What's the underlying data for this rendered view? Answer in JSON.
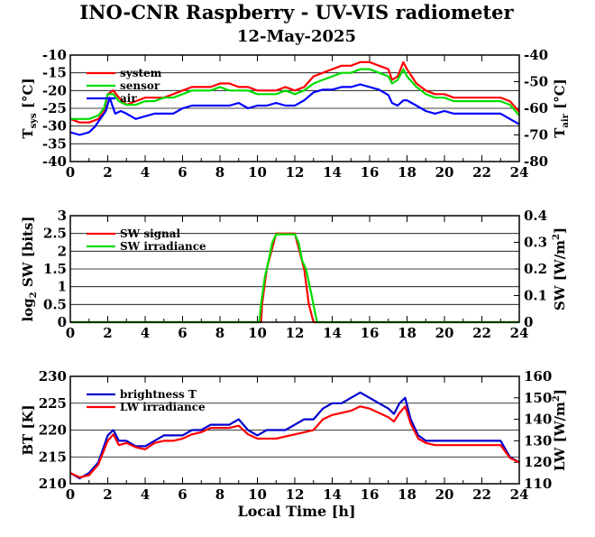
{
  "header": {
    "title": "INO-CNR Raspberry - UV-VIS radiometer",
    "date": "12-May-2025"
  },
  "shared_x": {
    "label": "Local Time [h]",
    "range": [
      0,
      24
    ],
    "ticks": [
      "0",
      "2",
      "4",
      "6",
      "8",
      "10",
      "12",
      "14",
      "16",
      "18",
      "20",
      "22",
      "24"
    ]
  },
  "chart_data": [
    {
      "type": "line",
      "ylabel_left": "T_sys [°C]",
      "ylabel_right": "T_air [°C]",
      "ylim_left": [
        -40,
        -10
      ],
      "ylim_right": [
        -80,
        -40
      ],
      "yticks_left": [
        "-40",
        "-35",
        "-30",
        "-25",
        "-20",
        "-15",
        "-10"
      ],
      "yticks_right": [
        "-80",
        "-70",
        "-60",
        "-50",
        "-40"
      ],
      "grid": true,
      "legend_position": "top-left",
      "series": [
        {
          "name": "system",
          "color": "#ff0000",
          "axis": "left",
          "x": [
            0,
            0.5,
            1,
            1.5,
            1.8,
            2,
            2.3,
            2.6,
            3,
            3.5,
            4,
            4.5,
            5,
            5.5,
            6,
            6.5,
            7,
            7.5,
            8,
            8.5,
            9,
            9.5,
            10,
            10.5,
            11,
            11.5,
            12,
            12.5,
            13,
            13.5,
            14,
            14.5,
            15,
            15.5,
            16,
            16.5,
            17,
            17.2,
            17.5,
            17.8,
            18,
            18.5,
            19,
            19.5,
            20,
            20.5,
            21,
            21.5,
            22,
            22.5,
            23,
            23.5,
            24
          ],
          "y": [
            -28,
            -29,
            -29,
            -28,
            -26,
            -21,
            -20,
            -22,
            -24,
            -23,
            -22,
            -22,
            -22,
            -21,
            -20,
            -19,
            -19,
            -19,
            -18,
            -18,
            -19,
            -19,
            -20,
            -20,
            -20,
            -19,
            -20,
            -19,
            -16,
            -15,
            -14,
            -13,
            -13,
            -12,
            -12,
            -13,
            -14,
            -17,
            -16,
            -12,
            -14,
            -18,
            -20,
            -21,
            -21,
            -22,
            -22,
            -22,
            -22,
            -22,
            -22,
            -23,
            -26
          ]
        },
        {
          "name": "sensor",
          "color": "#00dd00",
          "axis": "left",
          "x": [
            0,
            0.5,
            1,
            1.5,
            1.8,
            2,
            2.3,
            2.6,
            3,
            3.5,
            4,
            4.5,
            5,
            5.5,
            6,
            6.5,
            7,
            7.5,
            8,
            8.5,
            9,
            9.5,
            10,
            10.5,
            11,
            11.5,
            12,
            12.5,
            13,
            13.5,
            14,
            14.5,
            15,
            15.5,
            16,
            16.5,
            17,
            17.2,
            17.5,
            17.8,
            18,
            18.5,
            19,
            19.5,
            20,
            20.5,
            21,
            21.5,
            22,
            22.5,
            23,
            23.5,
            24
          ],
          "y": [
            -28,
            -28,
            -28,
            -27,
            -25,
            -21,
            -21,
            -23,
            -24,
            -24,
            -23,
            -23,
            -22,
            -22,
            -21,
            -20,
            -20,
            -20,
            -19,
            -20,
            -20,
            -20,
            -21,
            -21,
            -21,
            -20,
            -21,
            -20,
            -18,
            -17,
            -16,
            -15,
            -15,
            -14,
            -14,
            -15,
            -16,
            -18,
            -17,
            -14,
            -16,
            -19,
            -21,
            -22,
            -22,
            -23,
            -23,
            -23,
            -23,
            -23,
            -23,
            -24,
            -27
          ]
        },
        {
          "name": "air",
          "color": "#0000ff",
          "axis": "right",
          "x": [
            0,
            0.5,
            1,
            1.3,
            1.6,
            1.9,
            2.1,
            2.4,
            2.7,
            3,
            3.5,
            4,
            4.5,
            5,
            5.5,
            6,
            6.5,
            7,
            7.5,
            8,
            8.5,
            9,
            9.5,
            10,
            10.5,
            11,
            11.5,
            12,
            12.5,
            13,
            13.5,
            14,
            14.5,
            15,
            15.5,
            16,
            16.5,
            17,
            17.2,
            17.5,
            17.8,
            18,
            18.5,
            19,
            19.5,
            20,
            20.5,
            21,
            21.5,
            22,
            22.5,
            23,
            23.5,
            24
          ],
          "y": [
            -69,
            -70,
            -69,
            -67,
            -64,
            -61,
            -56,
            -62,
            -61,
            -62,
            -64,
            -63,
            -62,
            -62,
            -62,
            -60,
            -59,
            -59,
            -59,
            -59,
            -59,
            -58,
            -60,
            -59,
            -59,
            -58,
            -59,
            -59,
            -57,
            -54,
            -53,
            -53,
            -52,
            -52,
            -51,
            -52,
            -53,
            -55,
            -58,
            -59,
            -57,
            -57,
            -59,
            -61,
            -62,
            -61,
            -62,
            -62,
            -62,
            -62,
            -62,
            -62,
            -64,
            -66
          ]
        }
      ]
    },
    {
      "type": "line",
      "ylabel_left": "log₂ SW [bits]",
      "ylabel_right": "SW [W/m²]",
      "ylim_left": [
        0,
        3
      ],
      "ylim_right": [
        0,
        0.4
      ],
      "yticks_left": [
        "0",
        "0.5",
        "1",
        "1.5",
        "2",
        "2.5",
        "3"
      ],
      "yticks_right": [
        "0",
        "0.1",
        "0.2",
        "0.3",
        "0.4"
      ],
      "grid": true,
      "legend_position": "top-left",
      "series": [
        {
          "name": "SW signal",
          "color": "#ff0000",
          "axis": "left",
          "x": [
            0,
            10.2,
            10.25,
            10.5,
            10.75,
            11,
            11.5,
            12,
            12.25,
            12.5,
            12.75,
            13,
            13.1,
            24
          ],
          "y": [
            0,
            0,
            0.5,
            1.5,
            2,
            2.5,
            2.5,
            2.5,
            2,
            1.5,
            0.5,
            0,
            0,
            0
          ]
        },
        {
          "name": "SW irradiance",
          "color": "#00dd00",
          "axis": "right",
          "x": [
            0,
            10.1,
            10.2,
            10.4,
            10.6,
            10.8,
            11,
            11.5,
            12,
            12.2,
            12.4,
            12.6,
            12.9,
            13.1,
            13.2,
            24
          ],
          "y": [
            0,
            0,
            0.07,
            0.17,
            0.23,
            0.3,
            0.33,
            0.33,
            0.33,
            0.3,
            0.23,
            0.2,
            0.1,
            0.03,
            0,
            0
          ]
        }
      ]
    },
    {
      "type": "line",
      "ylabel_left": "BT [K]",
      "ylabel_right": "LW [W/m²]",
      "ylim_left": [
        210,
        230
      ],
      "ylim_right": [
        110,
        160
      ],
      "yticks_left": [
        "210",
        "215",
        "220",
        "225",
        "230"
      ],
      "yticks_right": [
        "110",
        "120",
        "130",
        "140",
        "150",
        "160"
      ],
      "grid": true,
      "legend_position": "top-left",
      "series": [
        {
          "name": "brightness T",
          "color": "#0000cc",
          "axis": "left",
          "x": [
            0,
            0.5,
            1,
            1.5,
            2,
            2.3,
            2.6,
            3,
            3.5,
            4,
            4.5,
            5,
            5.5,
            6,
            6.5,
            7,
            7.5,
            8,
            8.5,
            9,
            9.5,
            10,
            10.5,
            11,
            11.5,
            12,
            12.5,
            13,
            13.5,
            14,
            14.5,
            15,
            15.5,
            16,
            16.5,
            17,
            17.3,
            17.6,
            17.9,
            18.2,
            18.6,
            19,
            19.5,
            20,
            20.5,
            21,
            21.5,
            22,
            22.5,
            23,
            23.5,
            24
          ],
          "y": [
            212,
            211,
            212,
            214,
            219,
            220,
            218,
            218,
            217,
            217,
            218,
            219,
            219,
            219,
            220,
            220,
            221,
            221,
            221,
            222,
            220,
            219,
            220,
            220,
            220,
            221,
            222,
            222,
            224,
            225,
            225,
            226,
            227,
            226,
            225,
            224,
            223,
            225,
            226,
            222,
            219,
            218,
            218,
            218,
            218,
            218,
            218,
            218,
            218,
            218,
            215,
            214
          ]
        },
        {
          "name": "LW irradiance",
          "color": "#ff0000",
          "axis": "right",
          "x": [
            0,
            0.5,
            1,
            1.5,
            2,
            2.3,
            2.6,
            3,
            3.5,
            4,
            4.5,
            5,
            5.5,
            6,
            6.5,
            7,
            7.5,
            8,
            8.5,
            9,
            9.5,
            10,
            10.5,
            11,
            11.5,
            12,
            12.5,
            13,
            13.5,
            14,
            14.5,
            15,
            15.5,
            16,
            16.5,
            17,
            17.3,
            17.6,
            17.9,
            18.2,
            18.6,
            19,
            19.5,
            20,
            20.5,
            21,
            21.5,
            22,
            22.5,
            23,
            23.5,
            24
          ],
          "y": [
            115,
            113,
            114,
            119,
            130,
            133,
            128,
            129,
            127,
            126,
            129,
            130,
            130,
            131,
            133,
            134,
            136,
            136,
            136,
            137,
            133,
            131,
            131,
            131,
            132,
            133,
            134,
            135,
            140,
            142,
            143,
            144,
            146,
            145,
            143,
            141,
            139,
            143,
            146,
            138,
            131,
            129,
            128,
            128,
            128,
            128,
            128,
            128,
            128,
            128,
            122,
            120
          ]
        }
      ]
    }
  ]
}
